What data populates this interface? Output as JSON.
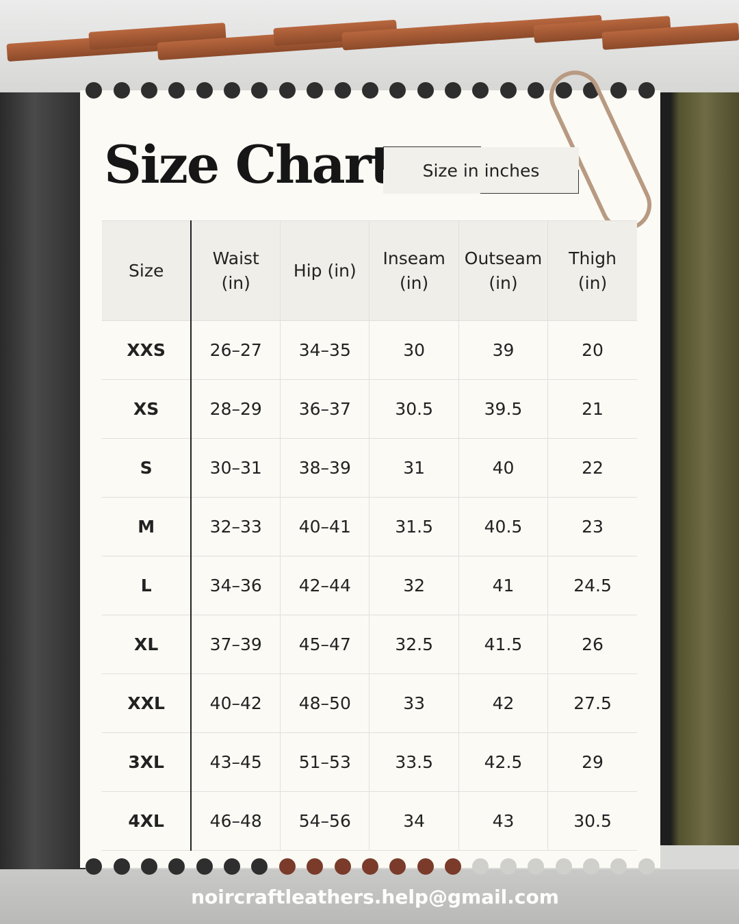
{
  "title": "Size Chart",
  "badge": "Size in inches",
  "table": {
    "headers": [
      [
        "Size",
        ""
      ],
      [
        "Waist",
        "(in)"
      ],
      [
        "Hip (in)",
        ""
      ],
      [
        "Inseam",
        "(in)"
      ],
      [
        "Outseam",
        "(in)"
      ],
      [
        "Thigh",
        "(in)"
      ]
    ],
    "rows": [
      [
        "XXS",
        "26–27",
        "34–35",
        "30",
        "39",
        "20"
      ],
      [
        "XS",
        "28–29",
        "36–37",
        "30.5",
        "39.5",
        "21"
      ],
      [
        "S",
        "30–31",
        "38–39",
        "31",
        "40",
        "22"
      ],
      [
        "M",
        "32–33",
        "40–41",
        "31.5",
        "40.5",
        "23"
      ],
      [
        "L",
        "34–36",
        "42–44",
        "32",
        "41",
        "24.5"
      ],
      [
        "XL",
        "37–39",
        "45–47",
        "32.5",
        "41.5",
        "26"
      ],
      [
        "XXL",
        "40–42",
        "48–50",
        "33",
        "42",
        "27.5"
      ],
      [
        "3XL",
        "43–45",
        "51–53",
        "33.5",
        "42.5",
        "29"
      ],
      [
        "4XL",
        "46–48",
        "54–56",
        "34",
        "43",
        "30.5"
      ]
    ]
  },
  "email": "noircraftleathers.help@gmail.com"
}
